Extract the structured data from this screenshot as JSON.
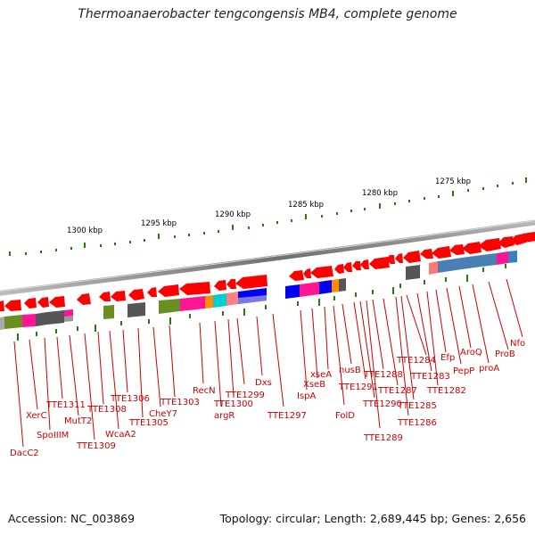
{
  "title": "Thermoanaerobacter tengcongensis MB4, complete genome",
  "accession": "Accession: NC_003869",
  "topology": "Topology: circular; Length: 2,689,445 bp; Genes: 2,656",
  "scale_labels": [
    "1275 kbp",
    "1280 kbp",
    "1285 kbp",
    "1290 kbp",
    "1295 kbp",
    "1300 kbp"
  ],
  "gene_labels": [
    "Nfo",
    "ProB",
    "proA",
    "AroQ",
    "PepP",
    "Efp",
    "TTE1282",
    "TTE1283",
    "TTE1284",
    "TTE1285",
    "TTE1286",
    "TTE1287",
    "TTE1288",
    "TTE1289",
    "TTE1290",
    "TTE1291",
    "nusB",
    "FolD",
    "xseA",
    "XseB",
    "IspA",
    "TTE1297",
    "Dxs",
    "TTE1299",
    "TTE1300",
    "argR",
    "RecN",
    "TTE1303",
    "CheY7",
    "TTE1305",
    "TTE1306",
    "WcaA2",
    "TTE1308",
    "TTE1309",
    "MutT2",
    "TTE1311",
    "SpoIIIM",
    "XerC",
    "DacC2"
  ],
  "colors": {
    "gene": "#ff0000",
    "label": "#cc0000",
    "scale_tick": "#2a7a10",
    "backbone": "#8c8c8c"
  }
}
